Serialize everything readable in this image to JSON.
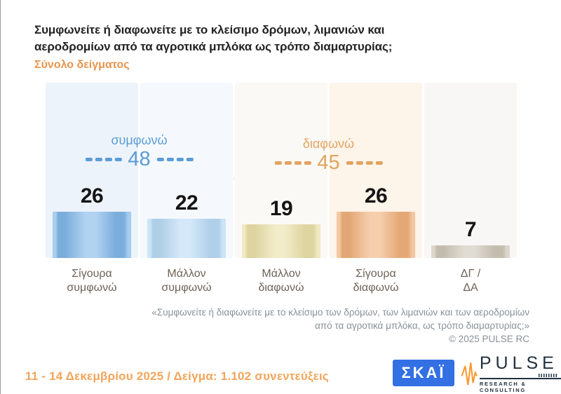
{
  "header": {
    "title": "Συμφωνείτε ή διαφωνείτε με το κλείσιμο δρόμων, λιμανιών και\nαεροδρομίων από τα αγροτικά μπλόκα ως τρόπο διαμαρτυρίας;",
    "subtitle": "Σύνολο δείγματος"
  },
  "chart_data": {
    "type": "bar",
    "title": "Συμφωνείτε ή διαφωνείτε με το κλείσιμο δρόμων, λιμανιών και αεροδρομίων από τα αγροτικά μπλόκα ως τρόπο διαμαρτυρίας; (Σύνολο δείγματος)",
    "categories": [
      "Σίγουρα\nσυμφωνώ",
      "Μάλλον\nσυμφωνώ",
      "Μάλλον\nδιαφωνώ",
      "Σίγουρα\nδιαφωνώ",
      "ΔΓ /\nΔΑ"
    ],
    "values": [
      26,
      22,
      19,
      26,
      7
    ],
    "ylim": [
      0,
      30
    ],
    "grid": false,
    "bar_colors": [
      "#82b7e8",
      "#b9daf5",
      "#eae0a9",
      "#f0b17c",
      "#cec7b8"
    ],
    "band_colors": [
      "#edf3fa",
      "#f5f9fd",
      "#faf9f6",
      "#fdf4ea",
      "#f8f7f5"
    ],
    "groups": [
      {
        "label": "συμφωνώ",
        "value": 48,
        "color": "#5b9cd6",
        "span": [
          0,
          1
        ]
      },
      {
        "label": "διαφωνώ",
        "value": 45,
        "color": "#e2a45f",
        "span": [
          2,
          3
        ]
      }
    ]
  },
  "watermark": {
    "name": "PULSE",
    "tagline": "RESEARCH & CONSULTING"
  },
  "footnote": {
    "text": "«Συμφωνείτε ή διαφωνείτε με το κλείσιμο των δρόμων, των λιμανιών και των αεροδρομίων\nαπό τα αγροτικά μπλόκα, ως τρόπο διαμαρτυρίας;»\n©  2025  PULSE RC"
  },
  "footer": {
    "fieldwork": "11 - 14 Δεκεμβρίου 2025  /  Δείγμα:  1.102 συνεντεύξεις",
    "skai_label": "ΣΚΑΪ",
    "pulse_name": "PULSE",
    "pulse_tagline": "RESEARCH & CONSULTING"
  }
}
